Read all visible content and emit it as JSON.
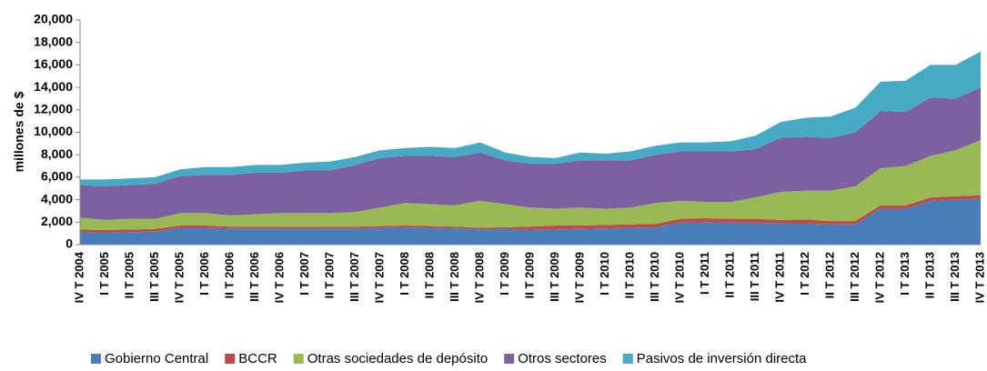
{
  "chart_data": {
    "type": "stacked-area",
    "y_label": "millones de $",
    "categories": [
      "IV T 2004",
      "I T 2005",
      "II T 2005",
      "III T 2005",
      "IV T 2005",
      "I T 2006",
      "II T 2006",
      "III T 2006",
      "IV T 2006",
      "I T 2007",
      "II T 2007",
      "III T 2007",
      "IV T 2007",
      "I T 2008",
      "II T 2008",
      "III T 2008",
      "IV T 2008",
      "I T 2009",
      "II T 2009",
      "III T 2009",
      "IV T 2009",
      "I T 2010",
      "II T 2010",
      "III T 2010",
      "IV T 2010",
      "I T 2011",
      "II T 2011",
      "III T 2011",
      "IV T 2011",
      "I T 2012",
      "II T 2012",
      "III T 2012",
      "IV T 2012",
      "I T 2013",
      "II T 2013",
      "III T 2013",
      "IV T 2013"
    ],
    "series": [
      {
        "name": "Gobierno Central",
        "color": "#4a7ebb",
        "values": [
          1100,
          1050,
          1100,
          1150,
          1500,
          1500,
          1450,
          1450,
          1450,
          1450,
          1450,
          1450,
          1500,
          1550,
          1500,
          1450,
          1350,
          1400,
          1300,
          1350,
          1400,
          1450,
          1500,
          1550,
          1950,
          2000,
          1950,
          1950,
          1900,
          1900,
          1800,
          1800,
          3200,
          3200,
          3900,
          4000,
          4100
        ]
      },
      {
        "name": "BCCR",
        "color": "#be4b48",
        "values": [
          250,
          250,
          250,
          250,
          200,
          200,
          150,
          150,
          150,
          150,
          150,
          150,
          150,
          150,
          150,
          150,
          150,
          150,
          300,
          350,
          300,
          300,
          300,
          300,
          350,
          350,
          350,
          350,
          300,
          350,
          300,
          300,
          300,
          300,
          300,
          300,
          300
        ]
      },
      {
        "name": "Otras sociedades de depósito",
        "color": "#98b954",
        "values": [
          1050,
          900,
          950,
          900,
          1100,
          1100,
          1000,
          1100,
          1200,
          1200,
          1200,
          1300,
          1650,
          2000,
          1950,
          1900,
          2400,
          2050,
          1700,
          1500,
          1600,
          1450,
          1500,
          1850,
          1600,
          1450,
          1500,
          1900,
          2500,
          2550,
          2700,
          3100,
          3300,
          3500,
          3700,
          4100,
          4900
        ]
      },
      {
        "name": "Otros sectores",
        "color": "#7d60a0",
        "values": [
          2900,
          3000,
          3000,
          3100,
          3300,
          3400,
          3600,
          3700,
          3600,
          3800,
          3800,
          4200,
          4400,
          4200,
          4300,
          4300,
          4300,
          3900,
          3900,
          4000,
          4200,
          4300,
          4200,
          4300,
          4400,
          4500,
          4500,
          4300,
          4800,
          4800,
          4700,
          4800,
          5100,
          4800,
          5200,
          4600,
          4700
        ]
      },
      {
        "name": "Pasivos de inversión directa",
        "color": "#46aac5",
        "values": [
          500,
          600,
          600,
          600,
          600,
          700,
          700,
          700,
          700,
          700,
          800,
          700,
          700,
          700,
          800,
          800,
          900,
          700,
          600,
          500,
          700,
          600,
          800,
          800,
          800,
          800,
          900,
          1200,
          1400,
          1700,
          1900,
          2200,
          2600,
          2800,
          2900,
          3000,
          3200
        ]
      }
    ],
    "ylim": [
      0,
      20000
    ],
    "yticks": [
      0,
      {
        "value": 2000,
        "label": "2,000"
      },
      {
        "value": 4000,
        "label": "4,000"
      },
      {
        "value": 6000,
        "label": "6,000"
      },
      {
        "value": 8000,
        "label": "8,000"
      },
      {
        "value": 10000,
        "label": "10,000"
      },
      {
        "value": 12000,
        "label": "12,000"
      },
      {
        "value": 14000,
        "label": "14,000"
      },
      {
        "value": 16000,
        "label": "16,000"
      },
      {
        "value": 18000,
        "label": "18,000"
      },
      {
        "value": 20000,
        "label": "20,000"
      }
    ],
    "grid": false
  }
}
